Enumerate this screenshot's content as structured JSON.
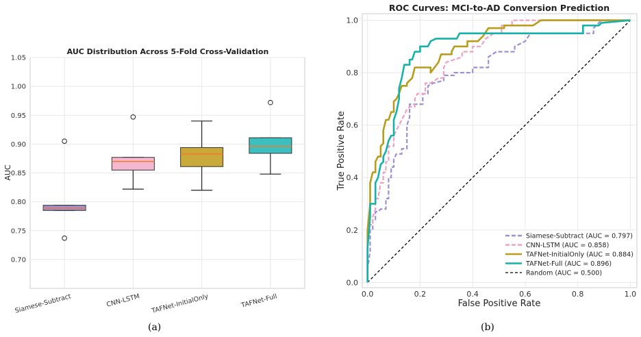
{
  "chart_data": [
    {
      "type": "box",
      "title": "AUC Distribution Across 5-Fold Cross-Validation",
      "xlabel": "",
      "ylabel": "AUC",
      "ylim": [
        0.65,
        1.05
      ],
      "yticks": [
        0.7,
        0.75,
        0.8,
        0.85,
        0.9,
        0.95,
        1.0,
        1.05
      ],
      "ytick_labels": [
        "0.70",
        "0.75",
        "0.80",
        "0.85",
        "0.90",
        "0.95",
        "1.00",
        "1.05"
      ],
      "grid": true,
      "categories": [
        "Siamese-Subtract",
        "CNN-LSTM",
        "TAFNet-InitialOnly",
        "TAFNet-Full"
      ],
      "boxes": [
        {
          "q1": 0.785,
          "median": 0.789,
          "q3": 0.794,
          "whisker_low": 0.785,
          "whisker_high": 0.794,
          "outliers": [
            0.905,
            0.737
          ],
          "color": "#9b8fd8"
        },
        {
          "q1": 0.855,
          "median": 0.87,
          "q3": 0.877,
          "whisker_low": 0.822,
          "whisker_high": 0.877,
          "outliers": [
            0.947
          ],
          "color": "#f5b8cf"
        },
        {
          "q1": 0.861,
          "median": 0.883,
          "q3": 0.894,
          "whisker_low": 0.82,
          "whisker_high": 0.94,
          "outliers": [],
          "color": "#c9a93a"
        },
        {
          "q1": 0.884,
          "median": 0.896,
          "q3": 0.911,
          "whisker_low": 0.848,
          "whisker_high": 0.911,
          "outliers": [
            0.972
          ],
          "color": "#3dbfbf"
        }
      ],
      "median_color": "#f07c30"
    },
    {
      "type": "line",
      "title": "ROC Curves: MCI-to-AD Conversion Prediction",
      "xlabel": "False Positive Rate",
      "ylabel": "True Positive Rate",
      "xlim": [
        0.0,
        1.0
      ],
      "ylim": [
        0.0,
        1.0
      ],
      "xticks": [
        0.0,
        0.2,
        0.4,
        0.6,
        0.8,
        1.0
      ],
      "xtick_labels": [
        "0.0",
        "0.2",
        "0.4",
        "0.6",
        "0.8",
        "1.0"
      ],
      "yticks": [
        0.0,
        0.2,
        0.4,
        0.6,
        0.8,
        1.0
      ],
      "ytick_labels": [
        "0.0",
        "0.2",
        "0.4",
        "0.6",
        "0.8",
        "1.0"
      ],
      "grid": true,
      "legend_position": "bottom-right",
      "series": [
        {
          "name": "Siamese-Subtract (AUC = 0.797)",
          "color": "#9b8fd8",
          "dash": "dashed",
          "points": [
            [
              0,
              0
            ],
            [
              0,
              0.05
            ],
            [
              0.01,
              0.12
            ],
            [
              0.01,
              0.2
            ],
            [
              0.02,
              0.2
            ],
            [
              0.02,
              0.24
            ],
            [
              0.03,
              0.24
            ],
            [
              0.03,
              0.27
            ],
            [
              0.04,
              0.27
            ],
            [
              0.05,
              0.28
            ],
            [
              0.07,
              0.28
            ],
            [
              0.07,
              0.32
            ],
            [
              0.08,
              0.32
            ],
            [
              0.08,
              0.4
            ],
            [
              0.09,
              0.4
            ],
            [
              0.09,
              0.44
            ],
            [
              0.1,
              0.44
            ],
            [
              0.1,
              0.47
            ],
            [
              0.11,
              0.49
            ],
            [
              0.13,
              0.49
            ],
            [
              0.13,
              0.51
            ],
            [
              0.15,
              0.51
            ],
            [
              0.15,
              0.6
            ],
            [
              0.16,
              0.63
            ],
            [
              0.16,
              0.68
            ],
            [
              0.21,
              0.68
            ],
            [
              0.21,
              0.72
            ],
            [
              0.23,
              0.72
            ],
            [
              0.23,
              0.75
            ],
            [
              0.25,
              0.76
            ],
            [
              0.29,
              0.77
            ],
            [
              0.29,
              0.79
            ],
            [
              0.33,
              0.79
            ],
            [
              0.33,
              0.8
            ],
            [
              0.4,
              0.8
            ],
            [
              0.4,
              0.82
            ],
            [
              0.46,
              0.82
            ],
            [
              0.46,
              0.86
            ],
            [
              0.49,
              0.88
            ],
            [
              0.56,
              0.88
            ],
            [
              0.56,
              0.9
            ],
            [
              0.6,
              0.92
            ],
            [
              0.62,
              0.95
            ],
            [
              0.68,
              0.95
            ],
            [
              0.72,
              0.95
            ],
            [
              0.86,
              0.95
            ],
            [
              0.86,
              0.97
            ],
            [
              0.89,
              1.0
            ],
            [
              1.0,
              1.0
            ]
          ]
        },
        {
          "name": "CNN-LSTM (AUC = 0.858)",
          "color": "#f0a0c0",
          "dash": "dashed",
          "points": [
            [
              0,
              0
            ],
            [
              0,
              0.15
            ],
            [
              0.01,
              0.22
            ],
            [
              0.02,
              0.22
            ],
            [
              0.02,
              0.25
            ],
            [
              0.03,
              0.28
            ],
            [
              0.03,
              0.32
            ],
            [
              0.04,
              0.32
            ],
            [
              0.05,
              0.38
            ],
            [
              0.06,
              0.38
            ],
            [
              0.06,
              0.42
            ],
            [
              0.07,
              0.42
            ],
            [
              0.07,
              0.46
            ],
            [
              0.08,
              0.46
            ],
            [
              0.08,
              0.52
            ],
            [
              0.1,
              0.52
            ],
            [
              0.1,
              0.56
            ],
            [
              0.11,
              0.58
            ],
            [
              0.12,
              0.6
            ],
            [
              0.13,
              0.62
            ],
            [
              0.14,
              0.64
            ],
            [
              0.15,
              0.66
            ],
            [
              0.16,
              0.67
            ],
            [
              0.18,
              0.67
            ],
            [
              0.18,
              0.7
            ],
            [
              0.19,
              0.72
            ],
            [
              0.22,
              0.72
            ],
            [
              0.22,
              0.76
            ],
            [
              0.24,
              0.76
            ],
            [
              0.27,
              0.78
            ],
            [
              0.29,
              0.78
            ],
            [
              0.29,
              0.82
            ],
            [
              0.3,
              0.84
            ],
            [
              0.33,
              0.85
            ],
            [
              0.36,
              0.86
            ],
            [
              0.36,
              0.88
            ],
            [
              0.4,
              0.88
            ],
            [
              0.4,
              0.9
            ],
            [
              0.43,
              0.9
            ],
            [
              0.45,
              0.93
            ],
            [
              0.48,
              0.95
            ],
            [
              0.51,
              0.95
            ],
            [
              0.51,
              0.98
            ],
            [
              0.55,
              0.98
            ],
            [
              0.55,
              1.0
            ],
            [
              1.0,
              1.0
            ]
          ]
        },
        {
          "name": "TAFNet-InitialOnly (AUC = 0.884)",
          "color": "#b89c1a",
          "dash": "solid",
          "points": [
            [
              0,
              0
            ],
            [
              0,
              0.2
            ],
            [
              0.01,
              0.3
            ],
            [
              0.01,
              0.38
            ],
            [
              0.02,
              0.42
            ],
            [
              0.03,
              0.42
            ],
            [
              0.03,
              0.46
            ],
            [
              0.04,
              0.48
            ],
            [
              0.05,
              0.48
            ],
            [
              0.05,
              0.52
            ],
            [
              0.06,
              0.53
            ],
            [
              0.06,
              0.58
            ],
            [
              0.07,
              0.62
            ],
            [
              0.08,
              0.62
            ],
            [
              0.09,
              0.65
            ],
            [
              0.1,
              0.65
            ],
            [
              0.1,
              0.69
            ],
            [
              0.11,
              0.7
            ],
            [
              0.12,
              0.72
            ],
            [
              0.13,
              0.75
            ],
            [
              0.15,
              0.75
            ],
            [
              0.15,
              0.76
            ],
            [
              0.17,
              0.78
            ],
            [
              0.18,
              0.82
            ],
            [
              0.24,
              0.82
            ],
            [
              0.24,
              0.8
            ],
            [
              0.27,
              0.84
            ],
            [
              0.28,
              0.87
            ],
            [
              0.32,
              0.87
            ],
            [
              0.32,
              0.88
            ],
            [
              0.33,
              0.9
            ],
            [
              0.38,
              0.9
            ],
            [
              0.38,
              0.92
            ],
            [
              0.42,
              0.92
            ],
            [
              0.44,
              0.94
            ],
            [
              0.46,
              0.97
            ],
            [
              0.52,
              0.97
            ],
            [
              0.52,
              0.98
            ],
            [
              0.63,
              0.98
            ],
            [
              0.66,
              1.0
            ],
            [
              1.0,
              1.0
            ]
          ]
        },
        {
          "name": "TAFNet-Full (AUC = 0.896)",
          "color": "#14b2aa",
          "dash": "solid",
          "points": [
            [
              0,
              0
            ],
            [
              0,
              0.13
            ],
            [
              0.01,
              0.25
            ],
            [
              0.01,
              0.3
            ],
            [
              0.03,
              0.3
            ],
            [
              0.03,
              0.38
            ],
            [
              0.04,
              0.4
            ],
            [
              0.05,
              0.45
            ],
            [
              0.06,
              0.46
            ],
            [
              0.06,
              0.48
            ],
            [
              0.07,
              0.5
            ],
            [
              0.08,
              0.54
            ],
            [
              0.09,
              0.56
            ],
            [
              0.1,
              0.56
            ],
            [
              0.1,
              0.62
            ],
            [
              0.11,
              0.65
            ],
            [
              0.12,
              0.7
            ],
            [
              0.12,
              0.74
            ],
            [
              0.13,
              0.78
            ],
            [
              0.14,
              0.83
            ],
            [
              0.16,
              0.83
            ],
            [
              0.16,
              0.85
            ],
            [
              0.17,
              0.85
            ],
            [
              0.18,
              0.88
            ],
            [
              0.2,
              0.88
            ],
            [
              0.2,
              0.9
            ],
            [
              0.23,
              0.9
            ],
            [
              0.24,
              0.92
            ],
            [
              0.26,
              0.93
            ],
            [
              0.34,
              0.93
            ],
            [
              0.35,
              0.95
            ],
            [
              0.82,
              0.95
            ],
            [
              0.82,
              0.98
            ],
            [
              0.88,
              0.98
            ],
            [
              0.89,
              0.99
            ],
            [
              1.0,
              1.0
            ]
          ]
        },
        {
          "name": "Random (AUC = 0.500)",
          "color": "#000000",
          "dash": "dashed",
          "points": [
            [
              0,
              0
            ],
            [
              1,
              1
            ]
          ]
        }
      ]
    }
  ],
  "panel_labels": [
    "(a)",
    "(b)"
  ]
}
